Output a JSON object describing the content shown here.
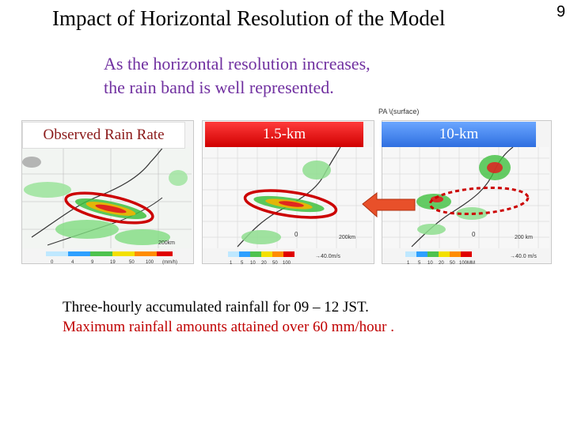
{
  "slide": {
    "title": "Impact of Horizontal Resolution of the Model",
    "number": "9",
    "subtitle_line1": "As the horizontal resolution increases,",
    "subtitle_line2": "the rain band is well represented.",
    "caption_line1": "Three-hourly accumulated rainfall for 09 – 12 JST.",
    "caption_line2": "Maximum rainfall amounts attained over 60 mm/hour ."
  },
  "panels": {
    "observed_label": "Observed Rain Rate",
    "res15_label": "1.5-km",
    "res10_label": "10-km",
    "map_header": "PA \\(surface)"
  },
  "legends": {
    "observed_ticks": [
      "0",
      "4",
      "9",
      "19",
      "50",
      "100",
      "(mm/h)"
    ],
    "res15_ticks": [
      "1",
      "5",
      "10",
      "20",
      "50",
      "100"
    ],
    "res15_vector": "→40.0m/s",
    "res10_ticks": [
      "1",
      "5",
      "10",
      "20",
      "50",
      "100MM"
    ],
    "res10_vector": "→40.0 m/s",
    "scale_observed": "200km",
    "scale_15": "200km",
    "scale_10": "200 km",
    "origin_15": "0",
    "origin_10": "0"
  },
  "colors": {
    "subtitle": "#7030a0",
    "highlight_red": "#cc0000",
    "caption_red": "#c00000",
    "label_15_bg": "#e00000",
    "label_10_bg": "#3f7fe8",
    "arrow_fill": "#e8502a"
  }
}
